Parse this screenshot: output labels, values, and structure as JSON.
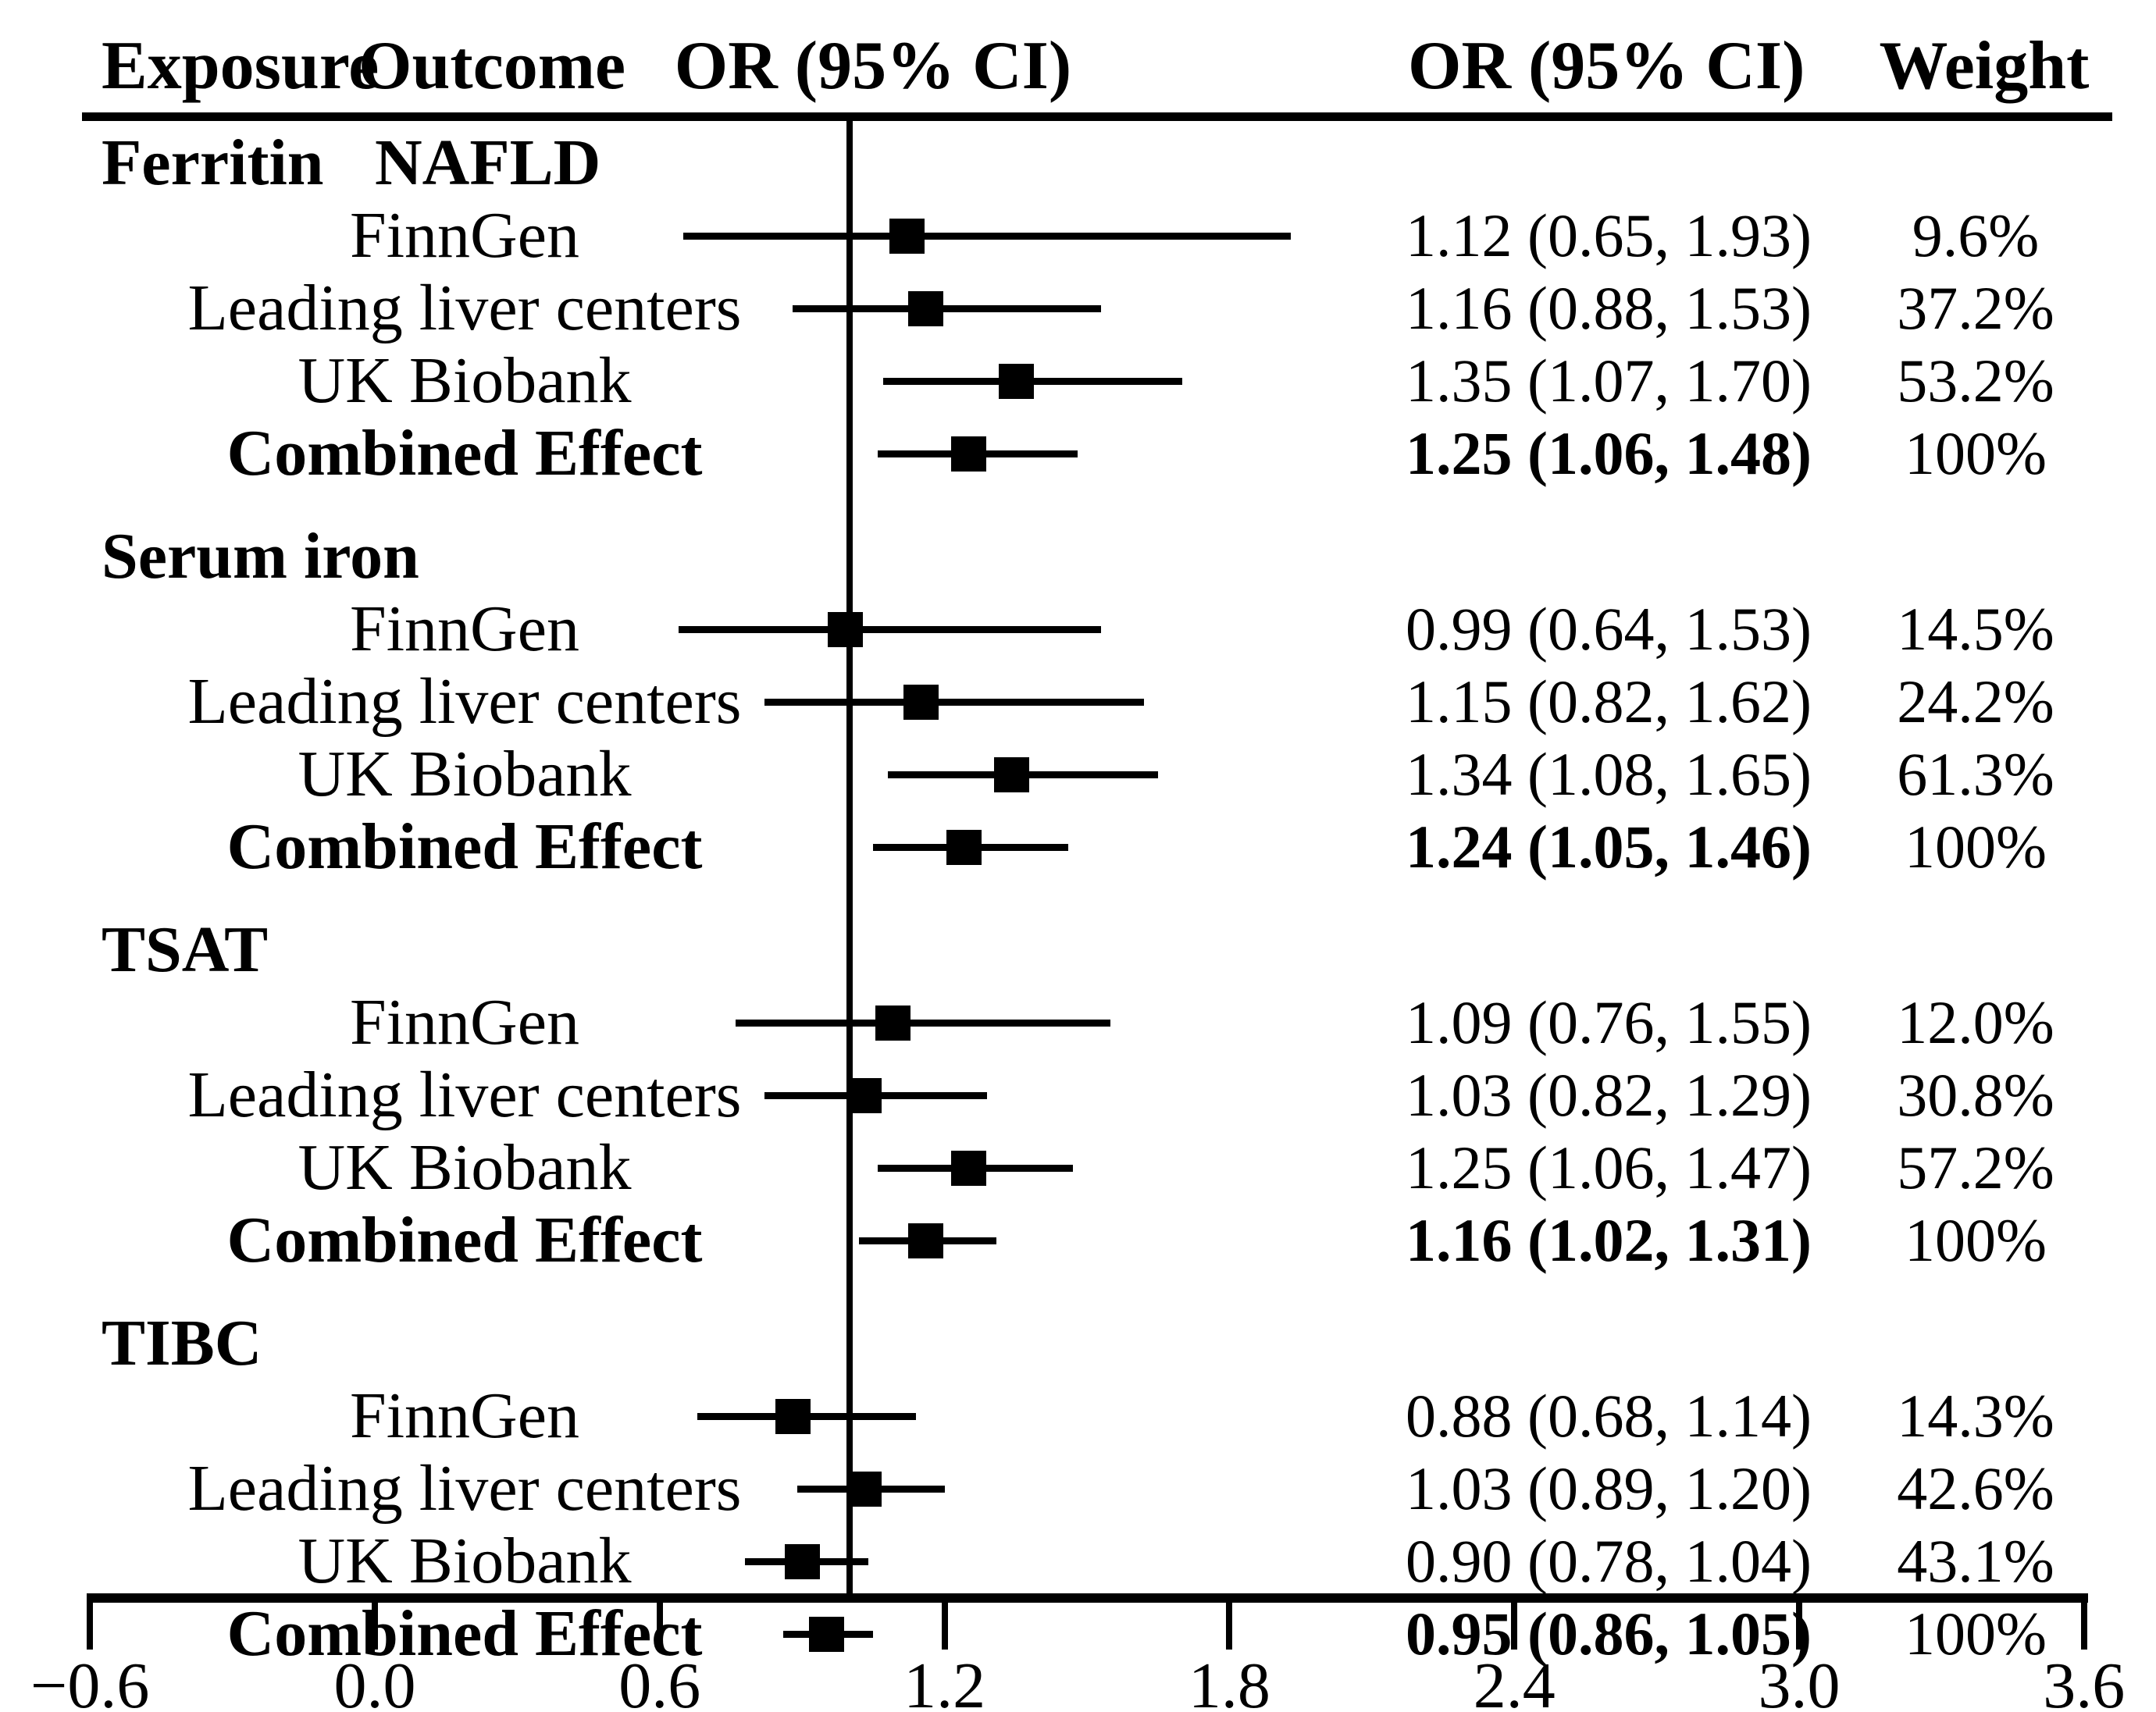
{
  "header": {
    "exposure": "Exposure",
    "outcome": "Outcome",
    "or_ci_left": "OR (95% CI)",
    "or_ci_right": "OR (95% CI)",
    "weight": "Weight"
  },
  "chart_data": {
    "type": "forest",
    "title": "",
    "xlabel": "",
    "axis": {
      "xlim": [
        -0.6,
        3.6
      ],
      "ticks": [
        -0.6,
        0.0,
        0.6,
        1.2,
        1.8,
        2.4,
        3.0,
        3.6
      ],
      "tick_labels": [
        "−0.6",
        "0.0",
        "0.6",
        "1.2",
        "1.8",
        "2.4",
        "3.0",
        "3.6"
      ],
      "reference_line": 1.0,
      "grid": false
    },
    "groups": [
      {
        "exposure": "Ferritin",
        "outcome": "NAFLD",
        "studies": [
          {
            "label": "FinnGen",
            "or": 1.12,
            "ci_low": 0.65,
            "ci_high": 1.93,
            "or_ci_text": "1.12 (0.65, 1.93)",
            "weight": "9.6%",
            "combined": false
          },
          {
            "label": "Leading liver centers",
            "or": 1.16,
            "ci_low": 0.88,
            "ci_high": 1.53,
            "or_ci_text": "1.16 (0.88, 1.53)",
            "weight": "37.2%",
            "combined": false
          },
          {
            "label": "UK Biobank",
            "or": 1.35,
            "ci_low": 1.07,
            "ci_high": 1.7,
            "or_ci_text": "1.35 (1.07, 1.70)",
            "weight": "53.2%",
            "combined": false
          },
          {
            "label": "Combined Effect",
            "or": 1.25,
            "ci_low": 1.06,
            "ci_high": 1.48,
            "or_ci_text": "1.25 (1.06, 1.48)",
            "weight": "100%",
            "combined": true
          }
        ]
      },
      {
        "exposure": "Serum iron",
        "outcome": "",
        "studies": [
          {
            "label": "FinnGen",
            "or": 0.99,
            "ci_low": 0.64,
            "ci_high": 1.53,
            "or_ci_text": "0.99 (0.64, 1.53)",
            "weight": "14.5%",
            "combined": false
          },
          {
            "label": "Leading liver centers",
            "or": 1.15,
            "ci_low": 0.82,
            "ci_high": 1.62,
            "or_ci_text": "1.15 (0.82, 1.62)",
            "weight": "24.2%",
            "combined": false
          },
          {
            "label": "UK Biobank",
            "or": 1.34,
            "ci_low": 1.08,
            "ci_high": 1.65,
            "or_ci_text": "1.34 (1.08, 1.65)",
            "weight": "61.3%",
            "combined": false
          },
          {
            "label": "Combined Effect",
            "or": 1.24,
            "ci_low": 1.05,
            "ci_high": 1.46,
            "or_ci_text": "1.24 (1.05, 1.46)",
            "weight": "100%",
            "combined": true
          }
        ]
      },
      {
        "exposure": "TSAT",
        "outcome": "",
        "studies": [
          {
            "label": "FinnGen",
            "or": 1.09,
            "ci_low": 0.76,
            "ci_high": 1.55,
            "or_ci_text": "1.09 (0.76, 1.55)",
            "weight": "12.0%",
            "combined": false
          },
          {
            "label": "Leading liver centers",
            "or": 1.03,
            "ci_low": 0.82,
            "ci_high": 1.29,
            "or_ci_text": "1.03 (0.82, 1.29)",
            "weight": "30.8%",
            "combined": false
          },
          {
            "label": "UK Biobank",
            "or": 1.25,
            "ci_low": 1.06,
            "ci_high": 1.47,
            "or_ci_text": "1.25 (1.06, 1.47)",
            "weight": "57.2%",
            "combined": false
          },
          {
            "label": "Combined Effect",
            "or": 1.16,
            "ci_low": 1.02,
            "ci_high": 1.31,
            "or_ci_text": "1.16 (1.02, 1.31)",
            "weight": "100%",
            "combined": true
          }
        ]
      },
      {
        "exposure": "TIBC",
        "outcome": "",
        "studies": [
          {
            "label": "FinnGen",
            "or": 0.88,
            "ci_low": 0.68,
            "ci_high": 1.14,
            "or_ci_text": "0.88 (0.68, 1.14)",
            "weight": "14.3%",
            "combined": false
          },
          {
            "label": "Leading liver centers",
            "or": 1.03,
            "ci_low": 0.89,
            "ci_high": 1.2,
            "or_ci_text": "1.03 (0.89, 1.20)",
            "weight": "42.6%",
            "combined": false
          },
          {
            "label": "UK Biobank",
            "or": 0.9,
            "ci_low": 0.78,
            "ci_high": 1.04,
            "or_ci_text": "0.90 (0.78, 1.04)",
            "weight": "43.1%",
            "combined": false
          },
          {
            "label": "Combined Effect",
            "or": 0.95,
            "ci_low": 0.86,
            "ci_high": 1.05,
            "or_ci_text": "0.95 (0.86, 1.05)",
            "weight": "100%",
            "combined": true
          }
        ]
      }
    ],
    "colors": {
      "marker": "#000000",
      "line": "#000000",
      "text": "#000000",
      "background": "#ffffff"
    }
  }
}
